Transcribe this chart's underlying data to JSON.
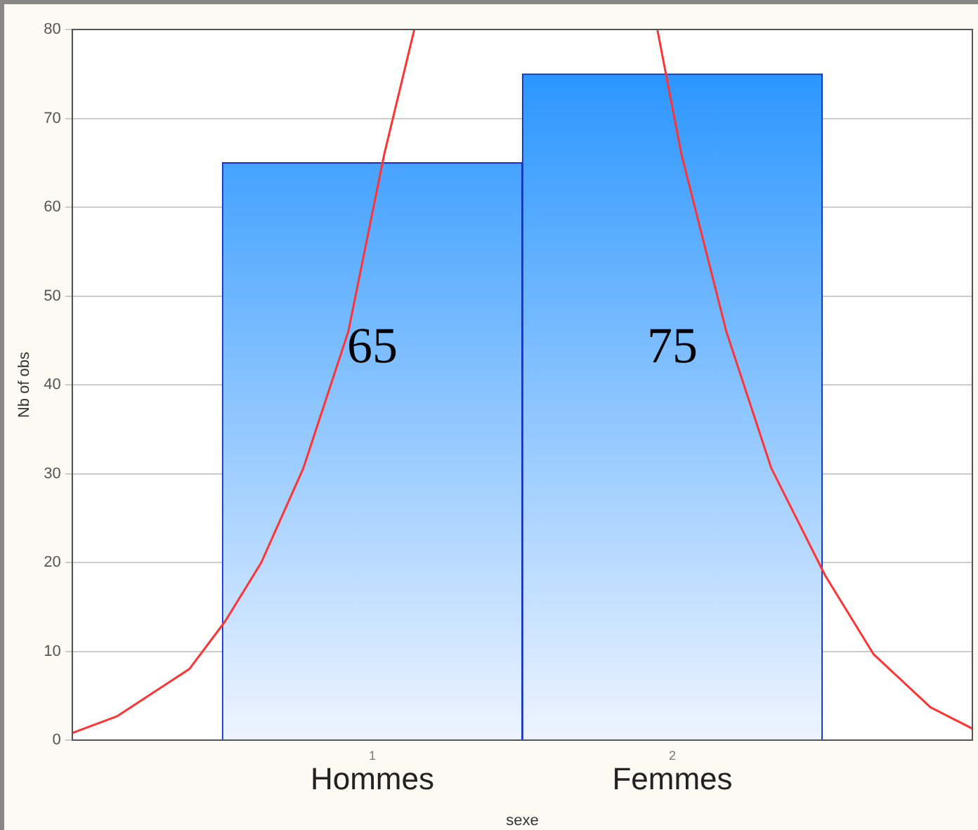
{
  "chart_data": {
    "type": "histogram",
    "xlabel": "sexe",
    "ylabel": "Nb of obs",
    "bins": [
      0.5,
      1.5,
      2.5
    ],
    "values": [
      65,
      75
    ],
    "color": "#1e90ff",
    "value_labels": [
      "65",
      "75"
    ],
    "xlim": [
      0,
      3
    ],
    "xticks": [
      1,
      2
    ],
    "annotations": [
      "Hommes",
      "Femmes"
    ],
    "ylim": [
      0,
      80
    ],
    "yticks": [
      0,
      10,
      20,
      30,
      40,
      50,
      60,
      70,
      80
    ],
    "grid": "y",
    "series": [
      {
        "type": "line",
        "color": "#ff3333",
        "x": [
          0,
          0.15,
          0.39,
          0.51,
          0.63,
          0.77,
          0.92,
          1.04,
          1.14
        ],
        "values": [
          0.8,
          2.7,
          8,
          13.4,
          20,
          30.6,
          46,
          66,
          80
        ]
      },
      {
        "type": "line",
        "color": "#ff3333",
        "x": [
          1.95,
          2.03,
          2.18,
          2.33,
          2.51,
          2.67,
          2.86,
          3.0
        ],
        "values": [
          80,
          66,
          46,
          30.6,
          18.5,
          9.7,
          3.7,
          1.3
        ]
      }
    ]
  }
}
